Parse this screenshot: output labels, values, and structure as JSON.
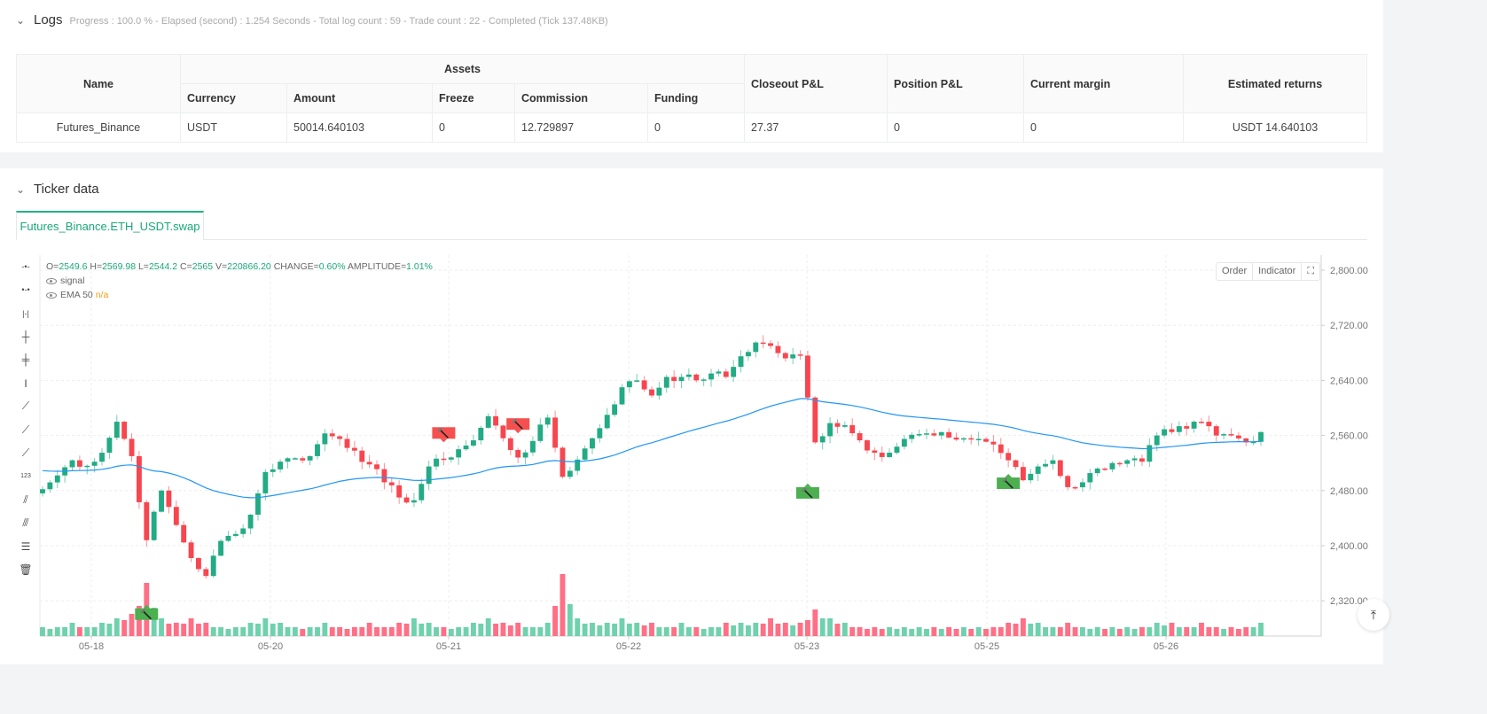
{
  "logs": {
    "title": "Logs",
    "summary": "Progress : 100.0 % - Elapsed (second) : 1.254  Seconds - Total log count : 59 - Trade count : 22 - Completed (Tick 137.48KB)"
  },
  "assets_table": {
    "headers": {
      "name": "Name",
      "assets": "Assets",
      "currency": "Currency",
      "amount": "Amount",
      "freeze": "Freeze",
      "commission": "Commission",
      "funding": "Funding",
      "closeout_pnl": "Closeout P&L",
      "position_pnl": "Position P&L",
      "current_margin": "Current margin",
      "estimated_returns": "Estimated returns"
    },
    "row": {
      "name": "Futures_Binance",
      "currency": "USDT",
      "amount": "50014.640103",
      "freeze": "0",
      "commission": "12.729897",
      "funding": "0",
      "closeout_pnl": "27.37",
      "position_pnl": "0",
      "current_margin": "0",
      "estimated_returns": "USDT 14.640103"
    }
  },
  "ticker": {
    "title": "Ticker data",
    "tab": "Futures_Binance.ETH_USDT.swap",
    "ohlc": {
      "o_label": "O=",
      "o": "2549.6",
      "h_label": "H=",
      "h": "2569.98",
      "l_label": "L=",
      "l": "2544.2",
      "c_label": "C=",
      "c": "2565",
      "v_label": "V=",
      "v": "220866.20",
      "change_label": "CHANGE=",
      "change": "0.60%",
      "amp_label": "AMPLITUDE=",
      "amp": "1.01%"
    },
    "indicators": [
      {
        "name": "signal",
        "value": ""
      },
      {
        "name": "EMA 50",
        "value": "n/a"
      }
    ],
    "buttons": {
      "order": "Order",
      "indicator": "Indicator",
      "fullscreen": "fullscreen-icon"
    },
    "toolbar_icons": [
      "horizontal-line-icon",
      "horizontal-ray-icon",
      "horizontal-segment-icon",
      "vertical-line-icon",
      "vertical-ray-icon",
      "vertical-segment-icon",
      "trend-line-icon",
      "ray-line-icon",
      "segment-icon",
      "price-label-icon",
      "parallel-channel-icon",
      "triple-lines-icon",
      "fib-lines-icon",
      "trash-icon"
    ]
  },
  "chart_data": {
    "type": "candlestick",
    "symbol": "Futures_Binance.ETH_USDT.swap",
    "colors": {
      "up": "#22ab84",
      "down": "#f7464f",
      "ema": "#2196f3",
      "buy": "#4caf50",
      "sell": "#f5504f"
    },
    "y_ticks": [
      "2,800.00",
      "2,720.00",
      "2,640.00",
      "2,560.00",
      "2,480.00",
      "2,400.00",
      "2,320.00"
    ],
    "y_tick_values": [
      2800,
      2720,
      2640,
      2560,
      2480,
      2400,
      2320
    ],
    "ylim": [
      2290,
      2822
    ],
    "x_ticks": [
      "05-18",
      "05-20",
      "05-21",
      "05-22",
      "05-23",
      "05-25",
      "05-26"
    ],
    "grid": true,
    "ema_period": 50,
    "closes": [
      2482,
      2502,
      2524,
      2516,
      2535,
      2580,
      2530,
      2408,
      2480,
      2430,
      2382,
      2356,
      2407,
      2417,
      2445,
      2507,
      2522,
      2527,
      2530,
      2563,
      2555,
      2538,
      2518,
      2492,
      2470,
      2466,
      2515,
      2525,
      2540,
      2553,
      2588,
      2556,
      2528,
      2552,
      2586,
      2500,
      2525,
      2556,
      2590,
      2630,
      2640,
      2618,
      2645,
      2645,
      2640,
      2650,
      2645,
      2675,
      2695,
      2690,
      2672,
      2676,
      2550,
      2578,
      2575,
      2553,
      2535,
      2535,
      2555,
      2562,
      2560,
      2557,
      2556,
      2555,
      2547,
      2524,
      2495,
      2515,
      2524,
      2485,
      2492,
      2512,
      2520,
      2524,
      2522,
      2560,
      2565,
      2570,
      2580,
      2560,
      2560,
      2550,
      2565
    ],
    "volumes": [
      2,
      2,
      3,
      2,
      3,
      4,
      5,
      12,
      4,
      3,
      4,
      3,
      2,
      2,
      3,
      4,
      3,
      2,
      2,
      3,
      2,
      2,
      3,
      2,
      3,
      4,
      3,
      2,
      2,
      3,
      4,
      3,
      3,
      2,
      3,
      14,
      4,
      3,
      3,
      4,
      3,
      3,
      2,
      3,
      2,
      2,
      3,
      3,
      3,
      4,
      3,
      3,
      6,
      4,
      3,
      2,
      2,
      2,
      2,
      2,
      2,
      2,
      2,
      2,
      2,
      3,
      4,
      3,
      2,
      3,
      2,
      2,
      2,
      2,
      2,
      3,
      3,
      2,
      3,
      2,
      2,
      2,
      3
    ],
    "signals": [
      {
        "side": "buy",
        "bar": 14,
        "price": 2300
      },
      {
        "side": "sell",
        "bar": 54,
        "price": 2563
      },
      {
        "side": "sell",
        "bar": 64,
        "price": 2576
      },
      {
        "side": "buy",
        "bar": 103,
        "price": 2476
      },
      {
        "side": "buy",
        "bar": 130,
        "price": 2490
      }
    ]
  }
}
